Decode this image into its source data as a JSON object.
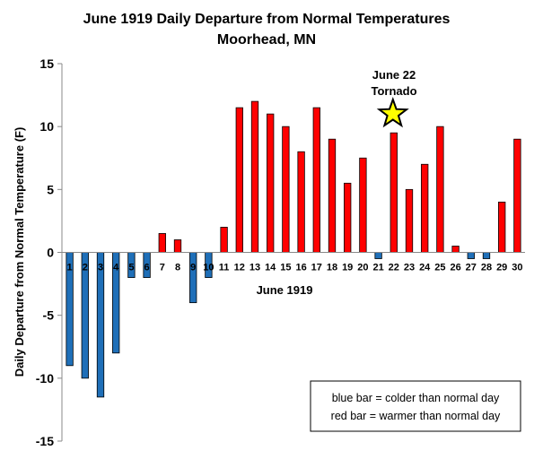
{
  "chart_data": {
    "type": "bar",
    "title": "June 1919 Daily Departure from Normal Temperatures",
    "subtitle": "Moorhead, MN",
    "xlabel": "June 1919",
    "ylabel": "Daily Departure from Normal Temperature (F)",
    "ylim": [
      -15,
      15
    ],
    "yticks": [
      15,
      10,
      5,
      0,
      -5,
      -10,
      -15
    ],
    "grid": false,
    "categories": [
      "1",
      "2",
      "3",
      "4",
      "5",
      "6",
      "7",
      "8",
      "9",
      "10",
      "11",
      "12",
      "13",
      "14",
      "15",
      "16",
      "17",
      "18",
      "19",
      "20",
      "21",
      "22",
      "23",
      "24",
      "25",
      "26",
      "27",
      "28",
      "29",
      "30"
    ],
    "values": [
      -9,
      -10,
      -11.5,
      -8,
      -2,
      -2,
      1.5,
      1,
      -4,
      -2,
      2,
      11.5,
      12,
      11,
      10,
      8,
      11.5,
      9,
      5.5,
      7.5,
      -0.5,
      9.5,
      5,
      7,
      10,
      0.5,
      -0.5,
      -0.5,
      4,
      9
    ],
    "colors": {
      "warm": "#ff0000",
      "cold": "#1f6fb8"
    },
    "annotation": {
      "line1": "June 22",
      "line2": "Tornado",
      "category": "22",
      "marker": "star-icon",
      "marker_color": "#ffff00"
    },
    "legend": {
      "placement": "bottom-right",
      "line1": "blue bar = colder than normal day",
      "line2": "red bar = warmer than normal day"
    }
  }
}
